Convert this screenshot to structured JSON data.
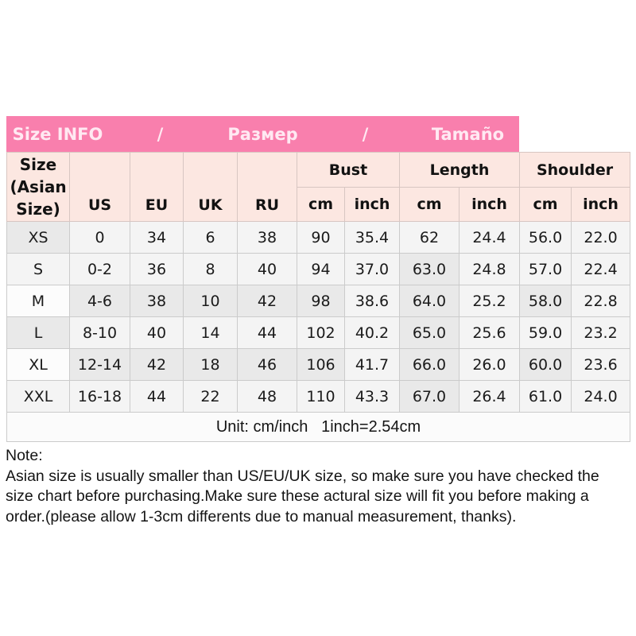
{
  "banner": {
    "title_en": "Size INFO",
    "separator1": "/",
    "title_ru": "Размер",
    "separator2": "/",
    "title_es": "Tamaño"
  },
  "colors": {
    "banner_pink": "#f97fad",
    "banner_text": "#ffe9f2",
    "header_bg": "#fce7e1",
    "grid_line": "#cbcbcb"
  },
  "table": {
    "size_header_lines": [
      "Size",
      "(Asian",
      "Size)"
    ],
    "col_headers": {
      "us": "US",
      "eu": "EU",
      "uk": "UK",
      "ru": "RU",
      "bust": "Bust",
      "length": "Length",
      "shoulder": "Shoulder"
    },
    "units": {
      "cm": "cm",
      "inch": "inch"
    },
    "rows": [
      [
        "XS",
        "0",
        "34",
        "6",
        "38",
        "90",
        "35.4",
        "62",
        "24.4",
        "56.0",
        "22.0"
      ],
      [
        "S",
        "0-2",
        "36",
        "8",
        "40",
        "94",
        "37.0",
        "63.0",
        "24.8",
        "57.0",
        "22.4"
      ],
      [
        "M",
        "4-6",
        "38",
        "10",
        "42",
        "98",
        "38.6",
        "64.0",
        "25.2",
        "58.0",
        "22.8"
      ],
      [
        "L",
        "8-10",
        "40",
        "14",
        "44",
        "102",
        "40.2",
        "65.0",
        "25.6",
        "59.0",
        "23.2"
      ],
      [
        "XL",
        "12-14",
        "42",
        "18",
        "46",
        "106",
        "41.7",
        "66.0",
        "26.0",
        "60.0",
        "23.6"
      ],
      [
        "XXL",
        "16-18",
        "44",
        "22",
        "48",
        "110",
        "43.3",
        "67.0",
        "26.4",
        "61.0",
        "24.0"
      ]
    ],
    "shades": [
      [
        2,
        1,
        1,
        1,
        1,
        1,
        1,
        1,
        1,
        1,
        1
      ],
      [
        1,
        1,
        1,
        1,
        1,
        1,
        1,
        2,
        1,
        1,
        1
      ],
      [
        0,
        2,
        2,
        2,
        2,
        2,
        1,
        2,
        1,
        2,
        1
      ],
      [
        2,
        1,
        1,
        1,
        1,
        1,
        1,
        2,
        1,
        1,
        1
      ],
      [
        0,
        2,
        2,
        2,
        2,
        2,
        1,
        2,
        1,
        2,
        1
      ],
      [
        1,
        1,
        1,
        1,
        1,
        1,
        1,
        2,
        1,
        1,
        1
      ]
    ],
    "unit_note": "Unit: cm/inch   1inch=2.54cm"
  },
  "note": {
    "title": "Note:",
    "lines": [
      "Asian size is usually smaller than US/EU/UK size, so make sure you have checked the",
      "size chart before purchasing.Make sure these actural size will fit you before making a",
      "order.(please allow 1-3cm differents due to manual measurement, thanks)."
    ]
  }
}
